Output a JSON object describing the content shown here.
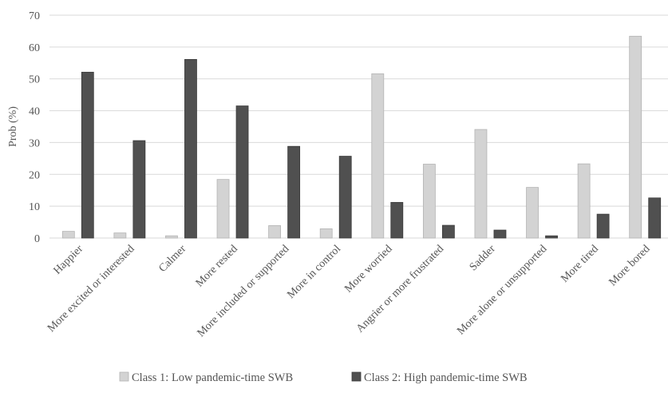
{
  "chart_data": {
    "type": "bar",
    "title": "",
    "xlabel": "",
    "ylabel": "Prob (%)",
    "ylim": [
      0,
      70
    ],
    "yticks": [
      0,
      10,
      20,
      30,
      40,
      50,
      60,
      70
    ],
    "grid": true,
    "legend_position": "bottom",
    "categories": [
      "Happier",
      "More excited or interested",
      "Calmer",
      "More rested",
      "More included or supported",
      "More in control",
      "More worried",
      "Angrier or more frustrated",
      "Sadder",
      "More alone or unsupported",
      "More tired",
      "More bored"
    ],
    "series": [
      {
        "name": "Class 1: Low pandemic-time SWB",
        "color": "#d3d3d3",
        "values": [
          2.1,
          1.6,
          0.7,
          18.4,
          3.9,
          2.9,
          51.6,
          23.2,
          34.1,
          15.9,
          23.3,
          63.4
        ]
      },
      {
        "name": "Class 2: High pandemic-time SWB",
        "color": "#505050",
        "values": [
          52.1,
          30.6,
          56.1,
          41.5,
          28.8,
          25.7,
          11.2,
          4.0,
          2.5,
          0.7,
          7.5,
          12.6
        ]
      }
    ]
  }
}
